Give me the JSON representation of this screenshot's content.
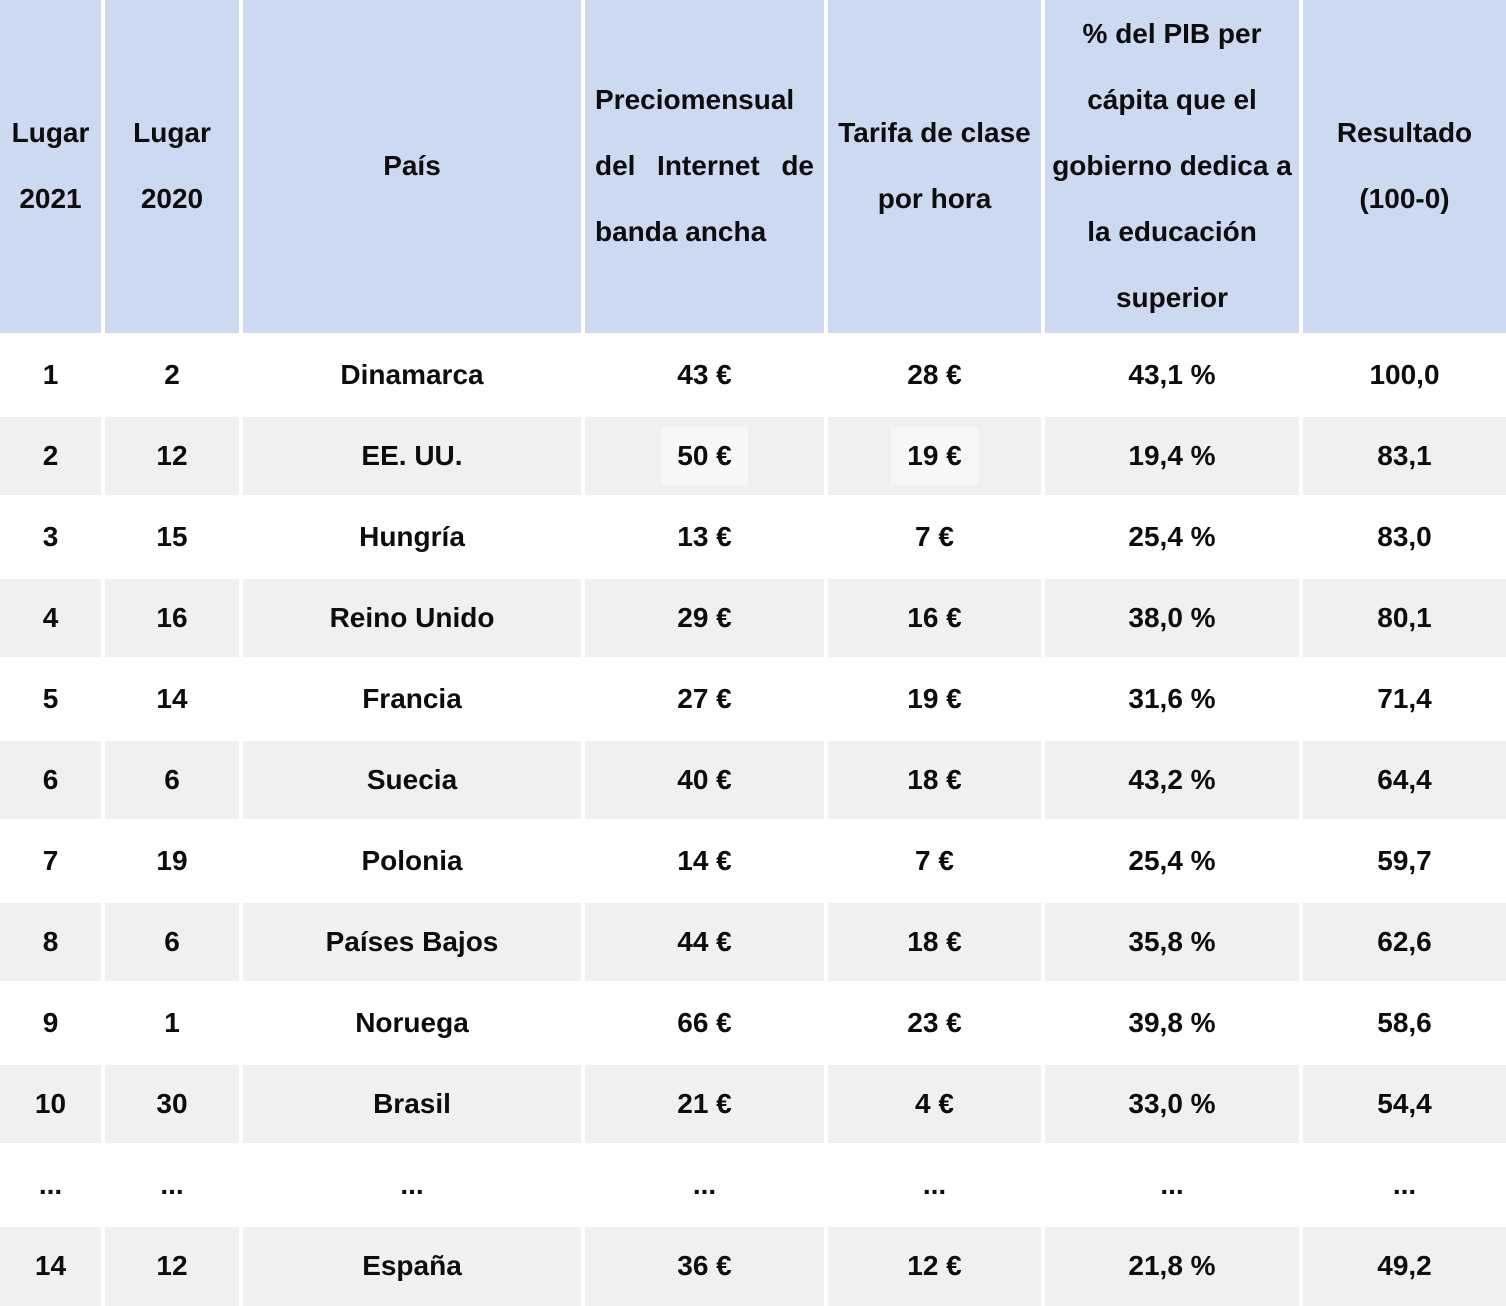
{
  "colors": {
    "header_bg": "#cdd9f1",
    "row_bg": "#ffffff",
    "row_alt_bg": "#f0f0f1",
    "highlight_bg": "#f7f7f8",
    "text": "#0d0d0d"
  },
  "table": {
    "headers": [
      {
        "id": "lugar-2021",
        "label": "Lugar\n2021"
      },
      {
        "id": "lugar-2020",
        "label": "Lugar\n2020"
      },
      {
        "id": "pais",
        "label": "País"
      },
      {
        "id": "precio-internet",
        "label": "Preciomensual del Internet de banda ancha",
        "justify": true
      },
      {
        "id": "tarifa-clase",
        "label": "Tarifa de clase\npor hora"
      },
      {
        "id": "pib-educacion",
        "label": "% del PIB per\ncápita que el\ngobierno dedica a\nla educación\nsuperior"
      },
      {
        "id": "resultado",
        "label": "Resultado\n(100-0)"
      }
    ],
    "highlighted_cells": [
      [
        1,
        3
      ],
      [
        1,
        4
      ]
    ]
  },
  "chart_data": {
    "type": "table",
    "columns": [
      "Lugar 2021",
      "Lugar 2020",
      "País",
      "Preciomensual del Internet de banda ancha",
      "Tarifa de clase por hora",
      "% del PIB per cápita que el gobierno dedica a la educación superior",
      "Resultado (100-0)"
    ],
    "rows": [
      [
        "1",
        "2",
        "Dinamarca",
        "43 €",
        "28 €",
        "43,1 %",
        "100,0"
      ],
      [
        "2",
        "12",
        "EE. UU.",
        "50 €",
        "19 €",
        "19,4 %",
        "83,1"
      ],
      [
        "3",
        "15",
        "Hungría",
        "13 €",
        "7 €",
        "25,4 %",
        "83,0"
      ],
      [
        "4",
        "16",
        "Reino Unido",
        "29 €",
        "16 €",
        "38,0 %",
        "80,1"
      ],
      [
        "5",
        "14",
        "Francia",
        "27 €",
        "19 €",
        "31,6 %",
        "71,4"
      ],
      [
        "6",
        "6",
        "Suecia",
        "40 €",
        "18 €",
        "43,2 %",
        "64,4"
      ],
      [
        "7",
        "19",
        "Polonia",
        "14 €",
        "7 €",
        "25,4 %",
        "59,7"
      ],
      [
        "8",
        "6",
        "Países Bajos",
        "44 €",
        "18 €",
        "35,8 %",
        "62,6"
      ],
      [
        "9",
        "1",
        "Noruega",
        "66 €",
        "23 €",
        "39,8 %",
        "58,6"
      ],
      [
        "10",
        "30",
        "Brasil",
        "21 €",
        "4 €",
        "33,0 %",
        "54,4"
      ],
      [
        "...",
        "...",
        "...",
        "...",
        "...",
        "...",
        "..."
      ],
      [
        "14",
        "12",
        "España",
        "36 €",
        "12 €",
        "21,8 %",
        "49,2"
      ]
    ]
  }
}
